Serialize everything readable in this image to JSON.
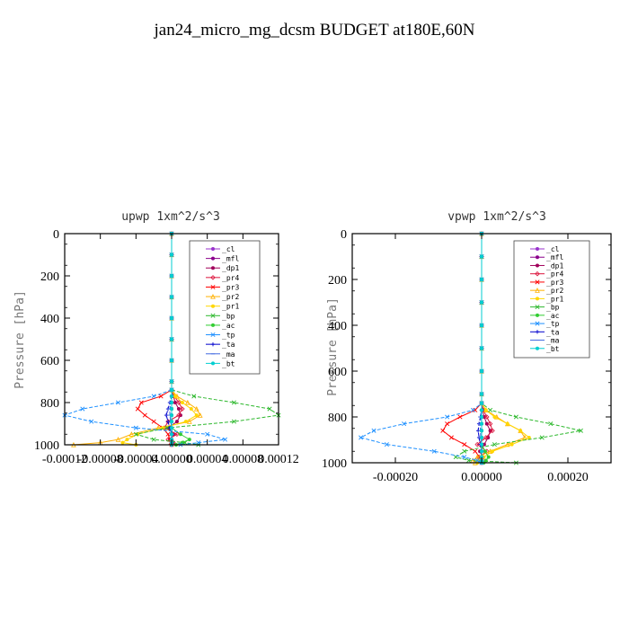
{
  "title": "jan24_micro_mg_dcsm  BUDGET at180E,60N",
  "chart_data": [
    {
      "type": "line",
      "title": "upwp  1xm^2/s^3",
      "ylabel": "Pressure [hPa]",
      "xlim": [
        -0.00012,
        0.00012
      ],
      "ylim": [
        1000,
        0
      ],
      "xticks": [
        -0.00012,
        -8e-05,
        -4e-05,
        0.0,
        4e-05,
        8e-05,
        0.00012
      ],
      "xtick_labels": [
        "-0.00012",
        "-0.00008",
        "-0.00004",
        "0.00000",
        "0.00004",
        "0.00008",
        "0.00012"
      ],
      "yticks": [
        0,
        200,
        400,
        600,
        800,
        1000
      ],
      "ytick_labels": [
        "0",
        "200",
        "400",
        "600",
        "800",
        "1000"
      ],
      "legend_position": "upper-right",
      "pressure": [
        0,
        100,
        200,
        300,
        400,
        500,
        600,
        700,
        740,
        770,
        800,
        830,
        860,
        890,
        920,
        950,
        975,
        990,
        1000
      ],
      "series": [
        {
          "name": "_cl",
          "color": "#9932cc",
          "marker": "o",
          "values": [
            0,
            0,
            0,
            0,
            0,
            0,
            0,
            0,
            0,
            0,
            0,
            0,
            0,
            0,
            0,
            0,
            0,
            0,
            0
          ]
        },
        {
          "name": "_mfl",
          "color": "#8b008b",
          "marker": "o",
          "values": [
            0,
            0,
            0,
            0,
            0,
            0,
            0,
            0,
            0,
            0,
            0,
            0,
            0,
            0,
            0,
            0,
            0,
            0,
            0
          ]
        },
        {
          "name": "_dp1",
          "color": "#a0005a",
          "marker": "o",
          "values": [
            0,
            0,
            0,
            0,
            0,
            0,
            0,
            0,
            0,
            2e-06,
            4e-06,
            8e-06,
            1e-05,
            6e-06,
            -4e-06,
            2e-06,
            -2e-06,
            1e-06,
            0
          ]
        },
        {
          "name": "_pr4",
          "color": "#dc143c",
          "marker": "d",
          "values": [
            0,
            0,
            0,
            0,
            0,
            0,
            0,
            0,
            0,
            3e-06,
            8e-06,
            1.2e-05,
            8e-06,
            -4e-06,
            -8e-06,
            6e-06,
            -4e-06,
            2e-06,
            0
          ]
        },
        {
          "name": "_pr3",
          "color": "#ff0000",
          "marker": "x",
          "values": [
            0,
            0,
            0,
            0,
            0,
            0,
            0,
            0,
            0,
            -1.2e-05,
            -3.4e-05,
            -3.8e-05,
            -3e-05,
            -2e-05,
            -1e-05,
            -4e-06,
            -2e-06,
            -1e-06,
            0
          ]
        },
        {
          "name": "_pr2",
          "color": "#ffb000",
          "marker": "^",
          "values": [
            0,
            0,
            0,
            0,
            0,
            0,
            0,
            0,
            0,
            6e-06,
            1.8e-05,
            2.8e-05,
            3.2e-05,
            2e-05,
            -1.5e-05,
            -4.5e-05,
            -6e-05,
            -8e-05,
            -0.00011
          ]
        },
        {
          "name": "_pr1",
          "color": "#ffd700",
          "marker": "o",
          "values": [
            0,
            0,
            0,
            0,
            0,
            0,
            0,
            0,
            0,
            4e-06,
            1.2e-05,
            2.2e-05,
            2.8e-05,
            1.6e-05,
            -1e-05,
            -3.8e-05,
            -5e-05,
            -5.5e-05,
            -4e-05
          ]
        },
        {
          "name": "_bp",
          "color": "#2db82d",
          "marker": "x",
          "values": [
            0,
            0,
            0,
            0,
            0,
            0,
            0,
            0,
            0,
            2.5e-05,
            7e-05,
            0.00011,
            0.00012,
            7e-05,
            -5e-06,
            -4e-05,
            -2e-05,
            1.5e-05,
            3e-05
          ]
        },
        {
          "name": "_ac",
          "color": "#32cd32",
          "marker": "o",
          "values": [
            0,
            0,
            0,
            0,
            0,
            0,
            0,
            0,
            0,
            0,
            0,
            0,
            0,
            0,
            0,
            1e-05,
            2e-05,
            1.2e-05,
            5e-06
          ]
        },
        {
          "name": "_tp",
          "color": "#1e90ff",
          "marker": "x",
          "values": [
            0,
            0,
            0,
            0,
            0,
            0,
            0,
            0,
            0,
            -2e-05,
            -6e-05,
            -0.0001,
            -0.00012,
            -9e-05,
            -4e-05,
            4e-05,
            6e-05,
            3e-05,
            1e-05
          ]
        },
        {
          "name": "_ta",
          "color": "#0000cd",
          "marker": "+",
          "values": [
            0,
            0,
            0,
            0,
            0,
            0,
            0,
            0,
            0,
            0,
            -2e-06,
            -4e-06,
            -6e-06,
            -4e-06,
            -2e-06,
            0,
            0,
            0,
            0
          ]
        },
        {
          "name": "_ma",
          "color": "#4169e1",
          "marker": "-",
          "values": [
            0,
            0,
            0,
            0,
            0,
            0,
            0,
            0,
            0,
            0,
            -1e-06,
            -2e-06,
            -2e-06,
            -1e-06,
            0,
            1e-06,
            0,
            0,
            0
          ]
        },
        {
          "name": "_bt",
          "color": "#00ced1",
          "marker": "o",
          "values": [
            0,
            0,
            0,
            0,
            0,
            0,
            0,
            0,
            0,
            0,
            0,
            0,
            0,
            0,
            0,
            0,
            0,
            0,
            0
          ]
        }
      ]
    },
    {
      "type": "line",
      "title": "vpwp  1xm^2/s^3",
      "ylabel": "Pressure [hPa]",
      "xlim": [
        -0.0003,
        0.0003
      ],
      "ylim": [
        1000,
        0
      ],
      "xticks": [
        -0.0002,
        0.0,
        0.0002
      ],
      "xtick_labels": [
        "-0.00020",
        "0.00000",
        "0.00020"
      ],
      "yticks": [
        0,
        200,
        400,
        600,
        800,
        1000
      ],
      "ytick_labels": [
        "0",
        "200",
        "400",
        "600",
        "800",
        "1000"
      ],
      "legend_position": "upper-right",
      "pressure": [
        0,
        100,
        200,
        300,
        400,
        500,
        600,
        700,
        740,
        770,
        800,
        830,
        860,
        890,
        920,
        950,
        975,
        990,
        1000
      ],
      "series": [
        {
          "name": "_cl",
          "color": "#9932cc",
          "marker": "o",
          "values": [
            0,
            0,
            0,
            0,
            0,
            0,
            0,
            0,
            0,
            0,
            0,
            0,
            0,
            0,
            0,
            0,
            0,
            0,
            0
          ]
        },
        {
          "name": "_mfl",
          "color": "#8b008b",
          "marker": "o",
          "values": [
            0,
            0,
            0,
            0,
            0,
            0,
            0,
            0,
            0,
            0,
            0,
            0,
            0,
            0,
            0,
            0,
            0,
            0,
            0
          ]
        },
        {
          "name": "_dp1",
          "color": "#a0005a",
          "marker": "o",
          "values": [
            0,
            0,
            0,
            0,
            0,
            0,
            0,
            0,
            0,
            2e-06,
            6e-06,
            1.2e-05,
            2e-05,
            1.5e-05,
            6e-06,
            -4e-06,
            2e-06,
            0,
            0
          ]
        },
        {
          "name": "_pr4",
          "color": "#dc143c",
          "marker": "d",
          "values": [
            0,
            0,
            0,
            0,
            0,
            0,
            0,
            0,
            0,
            4e-06,
            1.2e-05,
            2e-05,
            2.5e-05,
            1e-05,
            -1e-05,
            1.2e-05,
            -6e-06,
            4e-06,
            0
          ]
        },
        {
          "name": "_pr3",
          "color": "#ff0000",
          "marker": "x",
          "values": [
            0,
            0,
            0,
            0,
            0,
            0,
            0,
            0,
            0,
            -1.5e-05,
            -5e-05,
            -8e-05,
            -9e-05,
            -7e-05,
            -4e-05,
            -1.5e-05,
            -5e-06,
            -2e-06,
            0
          ]
        },
        {
          "name": "_pr2",
          "color": "#ffb000",
          "marker": "^",
          "values": [
            0,
            0,
            0,
            0,
            0,
            0,
            0,
            0,
            0,
            1e-05,
            3.5e-05,
            6e-05,
            9e-05,
            0.0001,
            6e-05,
            2e-05,
            -1e-05,
            -2e-05,
            -1.5e-05
          ]
        },
        {
          "name": "_pr1",
          "color": "#ffd700",
          "marker": "o",
          "values": [
            0,
            0,
            0,
            0,
            0,
            0,
            0,
            0,
            0,
            1e-05,
            3e-05,
            6e-05,
            9e-05,
            0.00011,
            7e-05,
            2.5e-05,
            5e-06,
            -5e-06,
            -1e-05
          ]
        },
        {
          "name": "_bp",
          "color": "#2db82d",
          "marker": "x",
          "values": [
            0,
            0,
            0,
            0,
            0,
            0,
            0,
            0,
            0,
            2e-05,
            8e-05,
            0.00016,
            0.00023,
            0.00014,
            3e-05,
            -4e-05,
            -6e-05,
            -3e-05,
            8e-05
          ]
        },
        {
          "name": "_ac",
          "color": "#32cd32",
          "marker": "o",
          "values": [
            0,
            0,
            0,
            0,
            0,
            0,
            0,
            0,
            0,
            0,
            0,
            0,
            0,
            0,
            0,
            8e-06,
            1.6e-05,
            1e-05,
            5e-06
          ]
        },
        {
          "name": "_tp",
          "color": "#1e90ff",
          "marker": "x",
          "values": [
            0,
            0,
            0,
            0,
            0,
            0,
            0,
            0,
            0,
            -2e-05,
            -8e-05,
            -0.00018,
            -0.00025,
            -0.00028,
            -0.00022,
            -0.00011,
            -4e-05,
            -1e-05,
            0
          ]
        },
        {
          "name": "_ta",
          "color": "#0000cd",
          "marker": "+",
          "values": [
            0,
            0,
            0,
            0,
            0,
            0,
            0,
            0,
            0,
            0,
            -3e-06,
            -6e-06,
            -8e-06,
            -6e-06,
            -3e-06,
            0,
            0,
            0,
            0
          ]
        },
        {
          "name": "_ma",
          "color": "#4169e1",
          "marker": "-",
          "values": [
            0,
            0,
            0,
            0,
            0,
            0,
            0,
            0,
            0,
            0,
            -2e-06,
            -3e-06,
            -3e-06,
            -2e-06,
            0,
            1e-06,
            0,
            0,
            0
          ]
        },
        {
          "name": "_bt",
          "color": "#00ced1",
          "marker": "o",
          "values": [
            0,
            0,
            0,
            0,
            0,
            0,
            0,
            0,
            0,
            0,
            0,
            0,
            0,
            0,
            0,
            0,
            0,
            0,
            0
          ]
        }
      ]
    }
  ]
}
